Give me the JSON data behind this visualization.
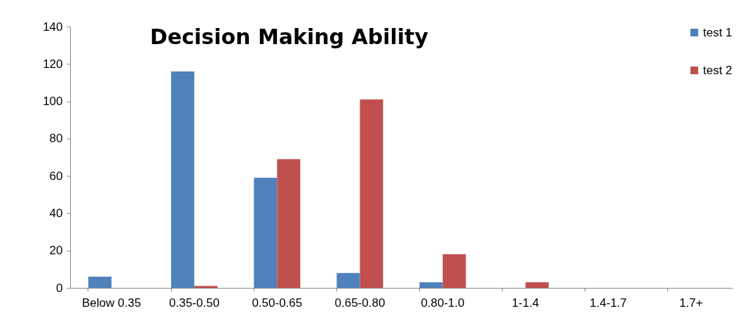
{
  "chart_data": {
    "type": "bar",
    "title": "Decision Making Ability",
    "categories": [
      "Below 0.35",
      "0.35-0.50",
      "0.50-0.65",
      "0.65-0.80",
      "0.80-1.0",
      "1-1.4",
      "1.4-1.7",
      "1.7+"
    ],
    "series": [
      {
        "name": "test 1",
        "color": "#4f81bd",
        "values": [
          6,
          116,
          59,
          8,
          3,
          0,
          0,
          0
        ]
      },
      {
        "name": "test 2",
        "color": "#c0504d",
        "values": [
          0,
          1,
          69,
          101,
          18,
          3,
          0,
          0
        ]
      }
    ],
    "ylim": [
      0,
      140
    ],
    "yticks": [
      0,
      20,
      40,
      60,
      80,
      100,
      120,
      140
    ],
    "grid": false,
    "legend": "top right"
  }
}
